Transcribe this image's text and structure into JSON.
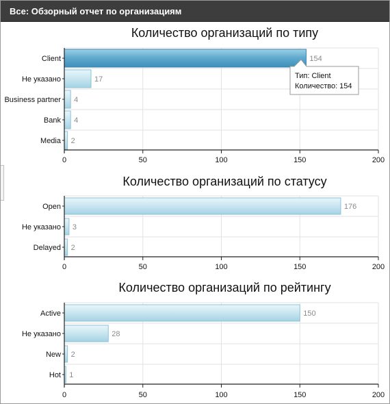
{
  "header": {
    "title": "Все: Обзорный отчет по организациям"
  },
  "colors": {
    "bar_light": "#d4ecf4",
    "bar_mid": "#a9d6e6",
    "bar_dark": "#6bb3d3",
    "bar_dark_end": "#4c9dc4",
    "grid": "#e2e2e2",
    "axis": "#222222",
    "value_label": "#8a8a8a",
    "header_bg": "#3d3d3d"
  },
  "chart_data": [
    {
      "type": "bar",
      "orientation": "horizontal",
      "title": "Количество организаций по типу",
      "categories": [
        "Client",
        "Не указано",
        "Business partner",
        "Bank",
        "Media"
      ],
      "values": [
        154,
        17,
        4,
        4,
        2
      ],
      "xlim": [
        0,
        200
      ],
      "xticks": [
        0,
        50,
        100,
        150,
        200
      ],
      "grid": true,
      "highlight_index": 0,
      "tooltip": {
        "line1": "Тип: Client",
        "line2": "Количество: 154"
      }
    },
    {
      "type": "bar",
      "orientation": "horizontal",
      "title": "Количество организаций по статусу",
      "categories": [
        "Open",
        "Не указано",
        "Delayed"
      ],
      "values": [
        176,
        3,
        2
      ],
      "xlim": [
        0,
        200
      ],
      "xticks": [
        0,
        50,
        100,
        150,
        200
      ],
      "grid": true
    },
    {
      "type": "bar",
      "orientation": "horizontal",
      "title": "Количество организаций по рейтингу",
      "categories": [
        "Active",
        "Не указано",
        "New",
        "Hot"
      ],
      "values": [
        150,
        28,
        2,
        1
      ],
      "xlim": [
        0,
        200
      ],
      "xticks": [
        0,
        50,
        100,
        150,
        200
      ],
      "grid": true
    }
  ]
}
